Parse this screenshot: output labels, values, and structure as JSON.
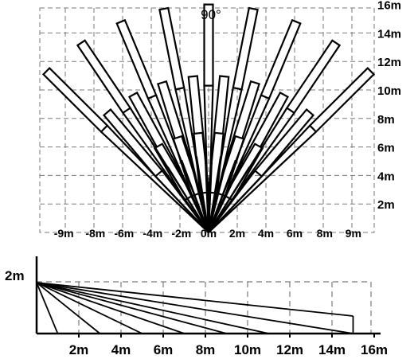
{
  "top_view": {
    "angle_label": "90°",
    "x_ticks": [
      "-9m",
      "-8m",
      "-6m",
      "-4m",
      "-2m",
      "0m",
      "2m",
      "4m",
      "6m",
      "8m",
      "9m"
    ],
    "y_ticks": [
      "2m",
      "4m",
      "6m",
      "8m",
      "10m",
      "12m",
      "14m",
      "16m"
    ],
    "zones_outer": {
      "count": 9,
      "spread_deg": 90,
      "range_m": 16
    },
    "zones_middle": {
      "count": 8,
      "spread_deg": 80,
      "range_m": 11
    },
    "zones_inner": {
      "count": 6,
      "spread_deg": 60,
      "range_m": 7
    },
    "colors": {
      "grid": "#7a7a7a",
      "lines": "#000000"
    }
  },
  "side_view": {
    "height_label": "2m",
    "x_ticks": [
      "2m",
      "4m",
      "6m",
      "8m",
      "10m",
      "12m",
      "14m",
      "16m"
    ],
    "beam_ends_m": [
      1,
      3,
      5,
      7,
      9,
      11,
      15
    ],
    "max_range_m": 15,
    "mount_height_m": 2,
    "colors": {
      "grid": "#7a7a7a",
      "lines": "#000000"
    }
  }
}
